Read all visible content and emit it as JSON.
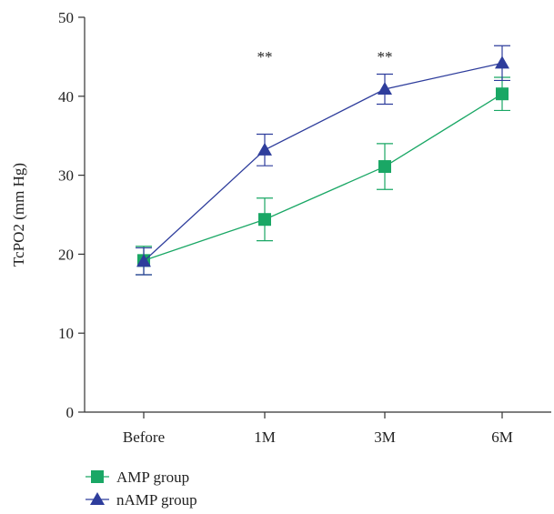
{
  "chart_data": {
    "type": "line",
    "title": "",
    "xlabel": "",
    "ylabel": "TcPO2 (mm Hg)",
    "categories": [
      "Before",
      "1M",
      "3M",
      "6M"
    ],
    "ylim": [
      0,
      50
    ],
    "yticks": [
      0,
      10,
      20,
      30,
      40,
      50
    ],
    "grid": false,
    "legend_position": "bottom-left",
    "series": [
      {
        "name": "AMP group",
        "color": "#1aa765",
        "marker": "square",
        "values": [
          19.2,
          24.4,
          31.1,
          40.3
        ],
        "errors": [
          1.8,
          2.7,
          2.9,
          2.1
        ]
      },
      {
        "name": "nAMP group",
        "color": "#2e3d9c",
        "marker": "triangle",
        "values": [
          19.1,
          33.2,
          40.9,
          44.2
        ],
        "errors": [
          1.7,
          2.0,
          1.9,
          2.2
        ]
      }
    ],
    "annotations": [
      {
        "category": "1M",
        "text": "**"
      },
      {
        "category": "3M",
        "text": "**"
      }
    ]
  }
}
